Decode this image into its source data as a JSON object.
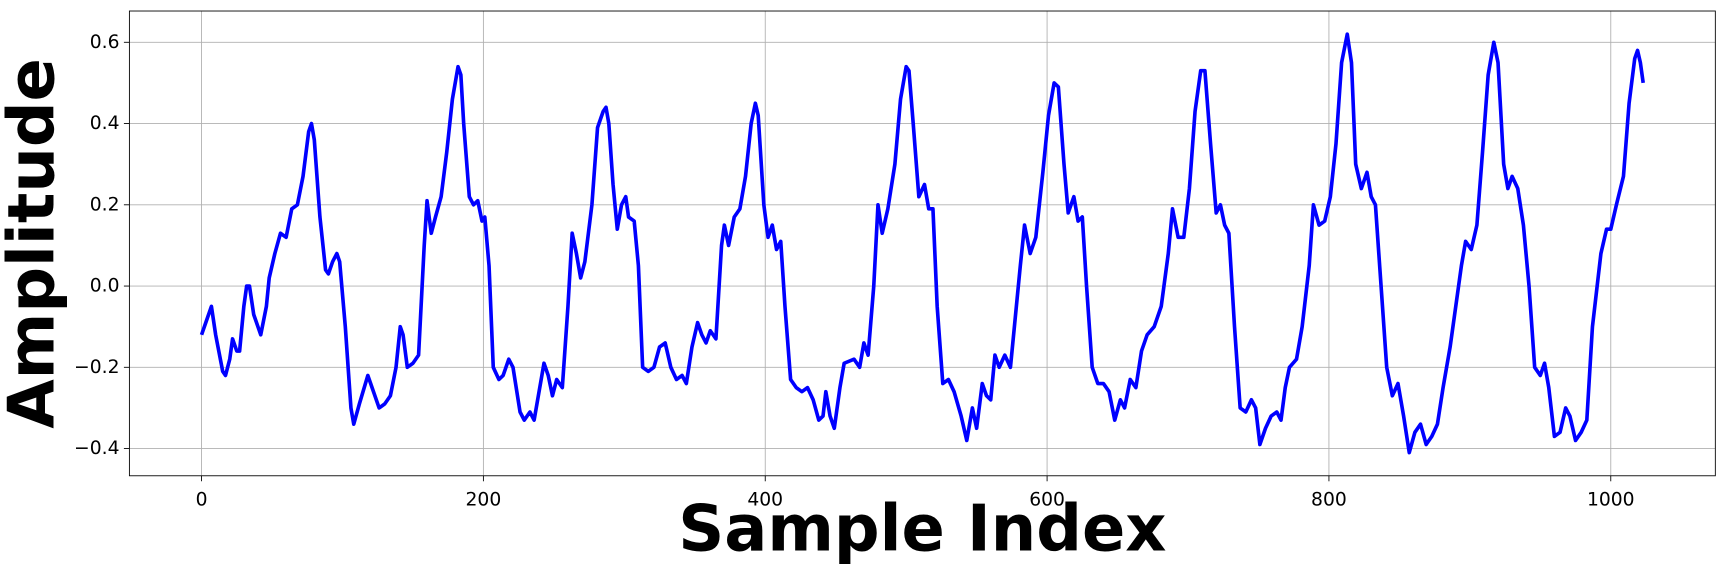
{
  "chart_data": {
    "type": "line",
    "xlabel": "Sample Index",
    "ylabel": "Amplitude",
    "x": [
      0,
      3,
      7,
      10,
      15,
      17,
      20,
      22,
      25,
      27,
      30,
      32,
      34,
      37,
      42,
      46,
      48,
      52,
      56,
      60,
      64,
      68,
      72,
      76,
      78,
      80,
      84,
      88,
      90,
      93,
      96,
      98,
      102,
      106,
      108,
      112,
      118,
      121,
      126,
      130,
      134,
      138,
      141,
      143,
      146,
      150,
      154,
      158,
      160,
      163,
      166,
      170,
      174,
      178,
      182,
      184,
      186,
      190,
      193,
      196,
      199,
      201,
      204,
      207,
      211,
      214,
      218,
      221,
      226,
      229,
      233,
      236,
      240,
      243,
      246,
      249,
      252,
      256,
      260,
      263,
      266,
      269,
      272,
      277,
      281,
      285,
      287,
      289,
      292,
      295,
      298,
      301,
      303,
      307,
      310,
      313,
      317,
      321,
      325,
      329,
      333,
      337,
      341,
      344,
      348,
      352,
      355,
      358,
      361,
      365,
      369,
      371,
      374,
      378,
      382,
      386,
      390,
      393,
      395,
      399,
      402,
      405,
      408,
      411,
      414,
      418,
      422,
      426,
      430,
      434,
      438,
      441,
      443,
      446,
      449,
      453,
      456,
      463,
      467,
      470,
      473,
      477,
      480,
      483,
      487,
      492,
      496,
      500,
      502,
      505,
      509,
      513,
      516,
      519,
      522,
      526,
      530,
      534,
      539,
      543,
      547,
      550,
      554,
      557,
      560,
      563,
      566,
      570,
      574,
      581,
      584,
      588,
      592,
      597,
      601,
      605,
      608,
      612,
      615,
      619,
      622,
      625,
      628,
      632,
      636,
      640,
      644,
      648,
      652,
      655,
      659,
      663,
      667,
      671,
      676,
      681,
      686,
      689,
      693,
      697,
      701,
      705,
      709,
      712,
      716,
      720,
      723,
      726,
      729,
      733,
      737,
      741,
      745,
      748,
      751,
      755,
      759,
      763,
      766,
      769,
      772,
      777,
      781,
      786,
      789,
      793,
      797,
      801,
      805,
      809,
      813,
      816,
      819,
      823,
      827,
      830,
      833,
      837,
      841,
      845,
      849,
      853,
      857,
      861,
      865,
      869,
      873,
      877,
      881,
      886,
      890,
      894,
      897,
      901,
      905,
      909,
      913,
      917,
      920,
      924,
      927,
      930,
      934,
      938,
      942,
      946,
      950,
      953,
      956,
      960,
      964,
      968,
      971,
      975,
      979,
      983,
      987,
      993,
      997,
      1000,
      1004,
      1009,
      1013,
      1017,
      1019,
      1021,
      1023
    ],
    "series": [
      {
        "color": "#0000ff",
        "values": [
          -0.12,
          -0.09,
          -0.05,
          -0.12,
          -0.21,
          -0.22,
          -0.18,
          -0.13,
          -0.16,
          -0.16,
          -0.05,
          0.0,
          0.0,
          -0.07,
          -0.12,
          -0.05,
          0.02,
          0.08,
          0.13,
          0.12,
          0.19,
          0.2,
          0.27,
          0.38,
          0.4,
          0.36,
          0.17,
          0.04,
          0.03,
          0.06,
          0.08,
          0.06,
          -0.1,
          -0.3,
          -0.34,
          -0.29,
          -0.22,
          -0.25,
          -0.3,
          -0.29,
          -0.27,
          -0.2,
          -0.1,
          -0.12,
          -0.2,
          -0.19,
          -0.17,
          0.1,
          0.21,
          0.13,
          0.17,
          0.22,
          0.33,
          0.46,
          0.54,
          0.52,
          0.4,
          0.22,
          0.2,
          0.21,
          0.16,
          0.17,
          0.05,
          -0.2,
          -0.23,
          -0.22,
          -0.18,
          -0.2,
          -0.31,
          -0.33,
          -0.31,
          -0.33,
          -0.25,
          -0.19,
          -0.22,
          -0.27,
          -0.23,
          -0.25,
          -0.05,
          0.13,
          0.08,
          0.02,
          0.06,
          0.2,
          0.39,
          0.43,
          0.44,
          0.4,
          0.25,
          0.14,
          0.2,
          0.22,
          0.17,
          0.16,
          0.05,
          -0.2,
          -0.21,
          -0.2,
          -0.15,
          -0.14,
          -0.2,
          -0.23,
          -0.22,
          -0.24,
          -0.15,
          -0.09,
          -0.12,
          -0.14,
          -0.11,
          -0.13,
          0.1,
          0.15,
          0.1,
          0.17,
          0.19,
          0.27,
          0.4,
          0.45,
          0.42,
          0.2,
          0.12,
          0.15,
          0.09,
          0.11,
          -0.05,
          -0.23,
          -0.25,
          -0.26,
          -0.25,
          -0.28,
          -0.33,
          -0.32,
          -0.26,
          -0.32,
          -0.35,
          -0.25,
          -0.19,
          -0.18,
          -0.2,
          -0.14,
          -0.17,
          0.0,
          0.2,
          0.13,
          0.19,
          0.3,
          0.46,
          0.54,
          0.53,
          0.4,
          0.22,
          0.25,
          0.19,
          0.19,
          -0.05,
          -0.24,
          -0.23,
          -0.26,
          -0.32,
          -0.38,
          -0.3,
          -0.35,
          -0.24,
          -0.27,
          -0.28,
          -0.17,
          -0.2,
          -0.17,
          -0.2,
          0.05,
          0.15,
          0.08,
          0.12,
          0.28,
          0.42,
          0.5,
          0.49,
          0.3,
          0.18,
          0.22,
          0.16,
          0.17,
          0.0,
          -0.2,
          -0.24,
          -0.24,
          -0.26,
          -0.33,
          -0.28,
          -0.3,
          -0.23,
          -0.25,
          -0.16,
          -0.12,
          -0.1,
          -0.05,
          0.08,
          0.19,
          0.12,
          0.12,
          0.24,
          0.43,
          0.53,
          0.53,
          0.35,
          0.18,
          0.2,
          0.15,
          0.13,
          -0.1,
          -0.3,
          -0.31,
          -0.28,
          -0.3,
          -0.39,
          -0.35,
          -0.32,
          -0.31,
          -0.33,
          -0.25,
          -0.2,
          -0.18,
          -0.1,
          0.05,
          0.2,
          0.15,
          0.16,
          0.22,
          0.35,
          0.55,
          0.62,
          0.55,
          0.3,
          0.24,
          0.28,
          0.22,
          0.2,
          0.0,
          -0.2,
          -0.27,
          -0.24,
          -0.32,
          -0.41,
          -0.36,
          -0.34,
          -0.39,
          -0.37,
          -0.34,
          -0.25,
          -0.15,
          -0.05,
          0.05,
          0.11,
          0.09,
          0.15,
          0.33,
          0.52,
          0.6,
          0.55,
          0.3,
          0.24,
          0.27,
          0.24,
          0.15,
          0.0,
          -0.2,
          -0.22,
          -0.19,
          -0.25,
          -0.37,
          -0.36,
          -0.3,
          -0.32,
          -0.38,
          -0.36,
          -0.33,
          -0.1,
          0.08,
          0.14,
          0.14,
          0.2,
          0.27,
          0.45,
          0.56,
          0.58,
          0.55,
          0.5
        ]
      }
    ],
    "xlim": [
      -51.2,
      1074.2
    ],
    "ylim": [
      -0.467,
      0.677
    ],
    "xticks": [
      0,
      200,
      400,
      600,
      800,
      1000
    ],
    "yticks": [
      {
        "value": -0.4,
        "label": "−0.4"
      },
      {
        "value": -0.2,
        "label": "−0.2"
      },
      {
        "value": 0,
        "label": "0.0"
      },
      0.2,
      0.4,
      0.6
    ],
    "grid": true
  }
}
